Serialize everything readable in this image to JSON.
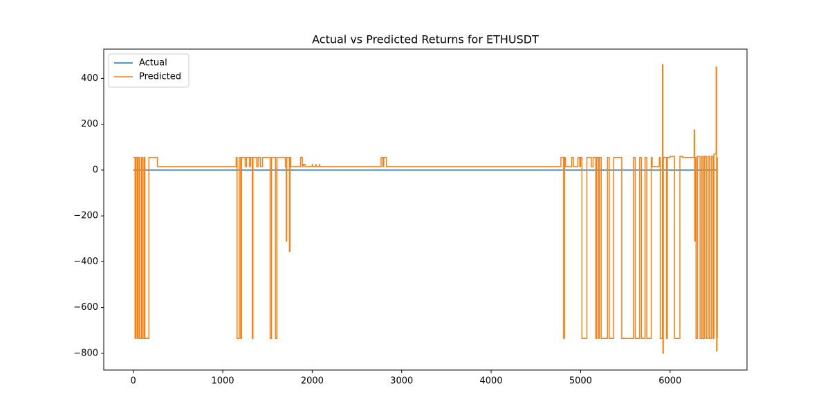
{
  "chart_data": {
    "type": "line",
    "title": "Actual vs Predicted Returns for ETHUSDT",
    "xlim": [
      -330,
      6860
    ],
    "ylim": [
      -873,
      528
    ],
    "xticks": [
      0,
      1000,
      2000,
      3000,
      4000,
      5000,
      6000
    ],
    "yticks": [
      {
        "value": -800,
        "label": "−800"
      },
      {
        "value": -600,
        "label": "−600"
      },
      {
        "value": -400,
        "label": "−400"
      },
      {
        "value": -200,
        "label": "−200"
      },
      0,
      200,
      400
    ],
    "grid": false,
    "legend": "upper left",
    "series": [
      {
        "name": "Actual",
        "color": "#1f77b4",
        "x": [
          0,
          6530
        ],
        "values": [
          0,
          0
        ]
      },
      {
        "name": "Predicted",
        "color": "#ff7f0e",
        "x": [
          0,
          20,
          20,
          30,
          30,
          45,
          45,
          55,
          55,
          70,
          70,
          90,
          90,
          105,
          105,
          120,
          120,
          130,
          130,
          175,
          175,
          270,
          270,
          1150,
          1150,
          1160,
          1160,
          1185,
          1185,
          1200,
          1200,
          1210,
          1210,
          1250,
          1250,
          1265,
          1265,
          1300,
          1300,
          1310,
          1310,
          1330,
          1330,
          1338,
          1338,
          1380,
          1380,
          1395,
          1395,
          1420,
          1420,
          1445,
          1445,
          1530,
          1530,
          1545,
          1545,
          1590,
          1590,
          1605,
          1605,
          1700,
          1700,
          1710,
          1710,
          1715,
          1715,
          1745,
          1745,
          1752,
          1752,
          1760,
          1760,
          1870,
          1870,
          1890,
          1890,
          1900,
          1900,
          1920,
          1920,
          2000,
          2000,
          2010,
          2040,
          2040,
          2050,
          2080,
          2080,
          2090,
          2770,
          2770,
          2790,
          2790,
          2800,
          2800,
          2830,
          2830,
          4780,
          4780,
          4810,
          4810,
          4820,
          4820,
          4830,
          4830,
          4900,
          4900,
          4920,
          4920,
          4970,
          4970,
          4990,
          4990,
          5000,
          5000,
          5015,
          5015,
          5070,
          5070,
          5120,
          5120,
          5140,
          5140,
          5170,
          5170,
          5180,
          5180,
          5200,
          5200,
          5210,
          5210,
          5230,
          5230,
          5300,
          5300,
          5320,
          5320,
          5370,
          5370,
          5460,
          5460,
          5590,
          5590,
          5610,
          5610,
          5660,
          5660,
          5680,
          5680,
          5720,
          5720,
          5740,
          5740,
          5790,
          5790,
          5800,
          5800,
          5880,
          5880,
          5890,
          5890,
          5915,
          5915,
          5920,
          5920,
          5925,
          5925,
          5960,
          5960,
          5970,
          5970,
          6000,
          6000,
          6050,
          6050,
          6110,
          6110,
          6140,
          6140,
          6270,
          6270,
          6275,
          6275,
          6280,
          6280,
          6290,
          6290,
          6305,
          6305,
          6335,
          6335,
          6355,
          6355,
          6370,
          6370,
          6385,
          6385,
          6405,
          6405,
          6425,
          6425,
          6440,
          6440,
          6460,
          6460,
          6480,
          6480,
          6490,
          6490,
          6515,
          6515,
          6520,
          6520,
          6525,
          6525,
          6528,
          6528,
          6530
        ],
        "values": [
          55,
          55,
          -735,
          -735,
          55,
          55,
          -735,
          -735,
          55,
          55,
          -735,
          -735,
          55,
          55,
          -735,
          -735,
          55,
          55,
          -735,
          -735,
          55,
          55,
          15,
          15,
          55,
          55,
          -735,
          -735,
          55,
          55,
          -735,
          -735,
          55,
          55,
          15,
          15,
          55,
          55,
          15,
          15,
          55,
          55,
          -735,
          -735,
          55,
          55,
          15,
          15,
          55,
          55,
          15,
          15,
          55,
          55,
          -735,
          -735,
          55,
          55,
          -735,
          -735,
          55,
          55,
          15,
          15,
          -310,
          -310,
          55,
          55,
          -355,
          -355,
          55,
          55,
          15,
          15,
          55,
          55,
          15,
          15,
          25,
          25,
          15,
          15,
          25,
          15,
          15,
          25,
          15,
          15,
          25,
          15,
          15,
          55,
          55,
          15,
          15,
          55,
          55,
          15,
          15,
          55,
          55,
          -735,
          -735,
          55,
          55,
          15,
          15,
          55,
          55,
          15,
          15,
          55,
          55,
          15,
          15,
          55,
          55,
          -735,
          -735,
          55,
          55,
          15,
          15,
          55,
          55,
          -735,
          -735,
          55,
          55,
          -735,
          -735,
          55,
          55,
          -735,
          -735,
          55,
          55,
          -735,
          -735,
          55,
          55,
          -735,
          -735,
          55,
          55,
          -735,
          -735,
          55,
          55,
          -735,
          -735,
          55,
          55,
          -735,
          -735,
          55,
          55,
          15,
          15,
          55,
          55,
          -735,
          -735,
          460,
          460,
          -800,
          -800,
          55,
          55,
          -735,
          -735,
          55,
          55,
          60,
          60,
          -735,
          -735,
          60,
          60,
          55,
          55,
          175,
          175,
          -310,
          -310,
          55,
          55,
          -735,
          -735,
          60,
          60,
          -735,
          -735,
          60,
          60,
          -735,
          -735,
          60,
          60,
          -735,
          -735,
          60,
          60,
          -735,
          -735,
          60,
          60,
          -735,
          -735,
          70,
          70,
          450,
          450,
          -790,
          -790,
          -730,
          -730,
          55,
          55
        ]
      }
    ]
  }
}
